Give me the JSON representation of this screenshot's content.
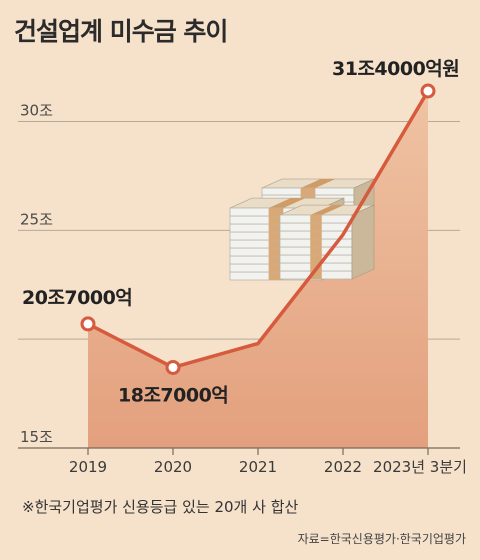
{
  "chart_data": {
    "type": "area",
    "title": "건설업계 미수금 추이",
    "categories": [
      "2019",
      "2020",
      "2021",
      "2022",
      "2023년 3분기"
    ],
    "series": [
      {
        "values": [
          20.7,
          18.7,
          19.8,
          24.8,
          31.4
        ]
      }
    ],
    "ylim": [
      15,
      31.4
    ],
    "yticks": [
      15,
      25,
      30
    ],
    "ytick_labels": [
      "15조",
      "25조",
      "30조"
    ],
    "data_labels": [
      {
        "index": 0,
        "text": "20조7000억"
      },
      {
        "index": 1,
        "text": "18조7000억"
      },
      {
        "index": 4,
        "text": "31조4000억원"
      }
    ],
    "grid": true,
    "colors": {
      "line": "#d65a3d",
      "area": "#ecb593",
      "background": "#f6e2cb",
      "grid": "#b8a897"
    },
    "illustration": "stacked-banknotes"
  },
  "footnote": "※한국기업평가 신용등급 있는 20개 사 합산",
  "source": "자료=한국신용평가·한국기업평가"
}
